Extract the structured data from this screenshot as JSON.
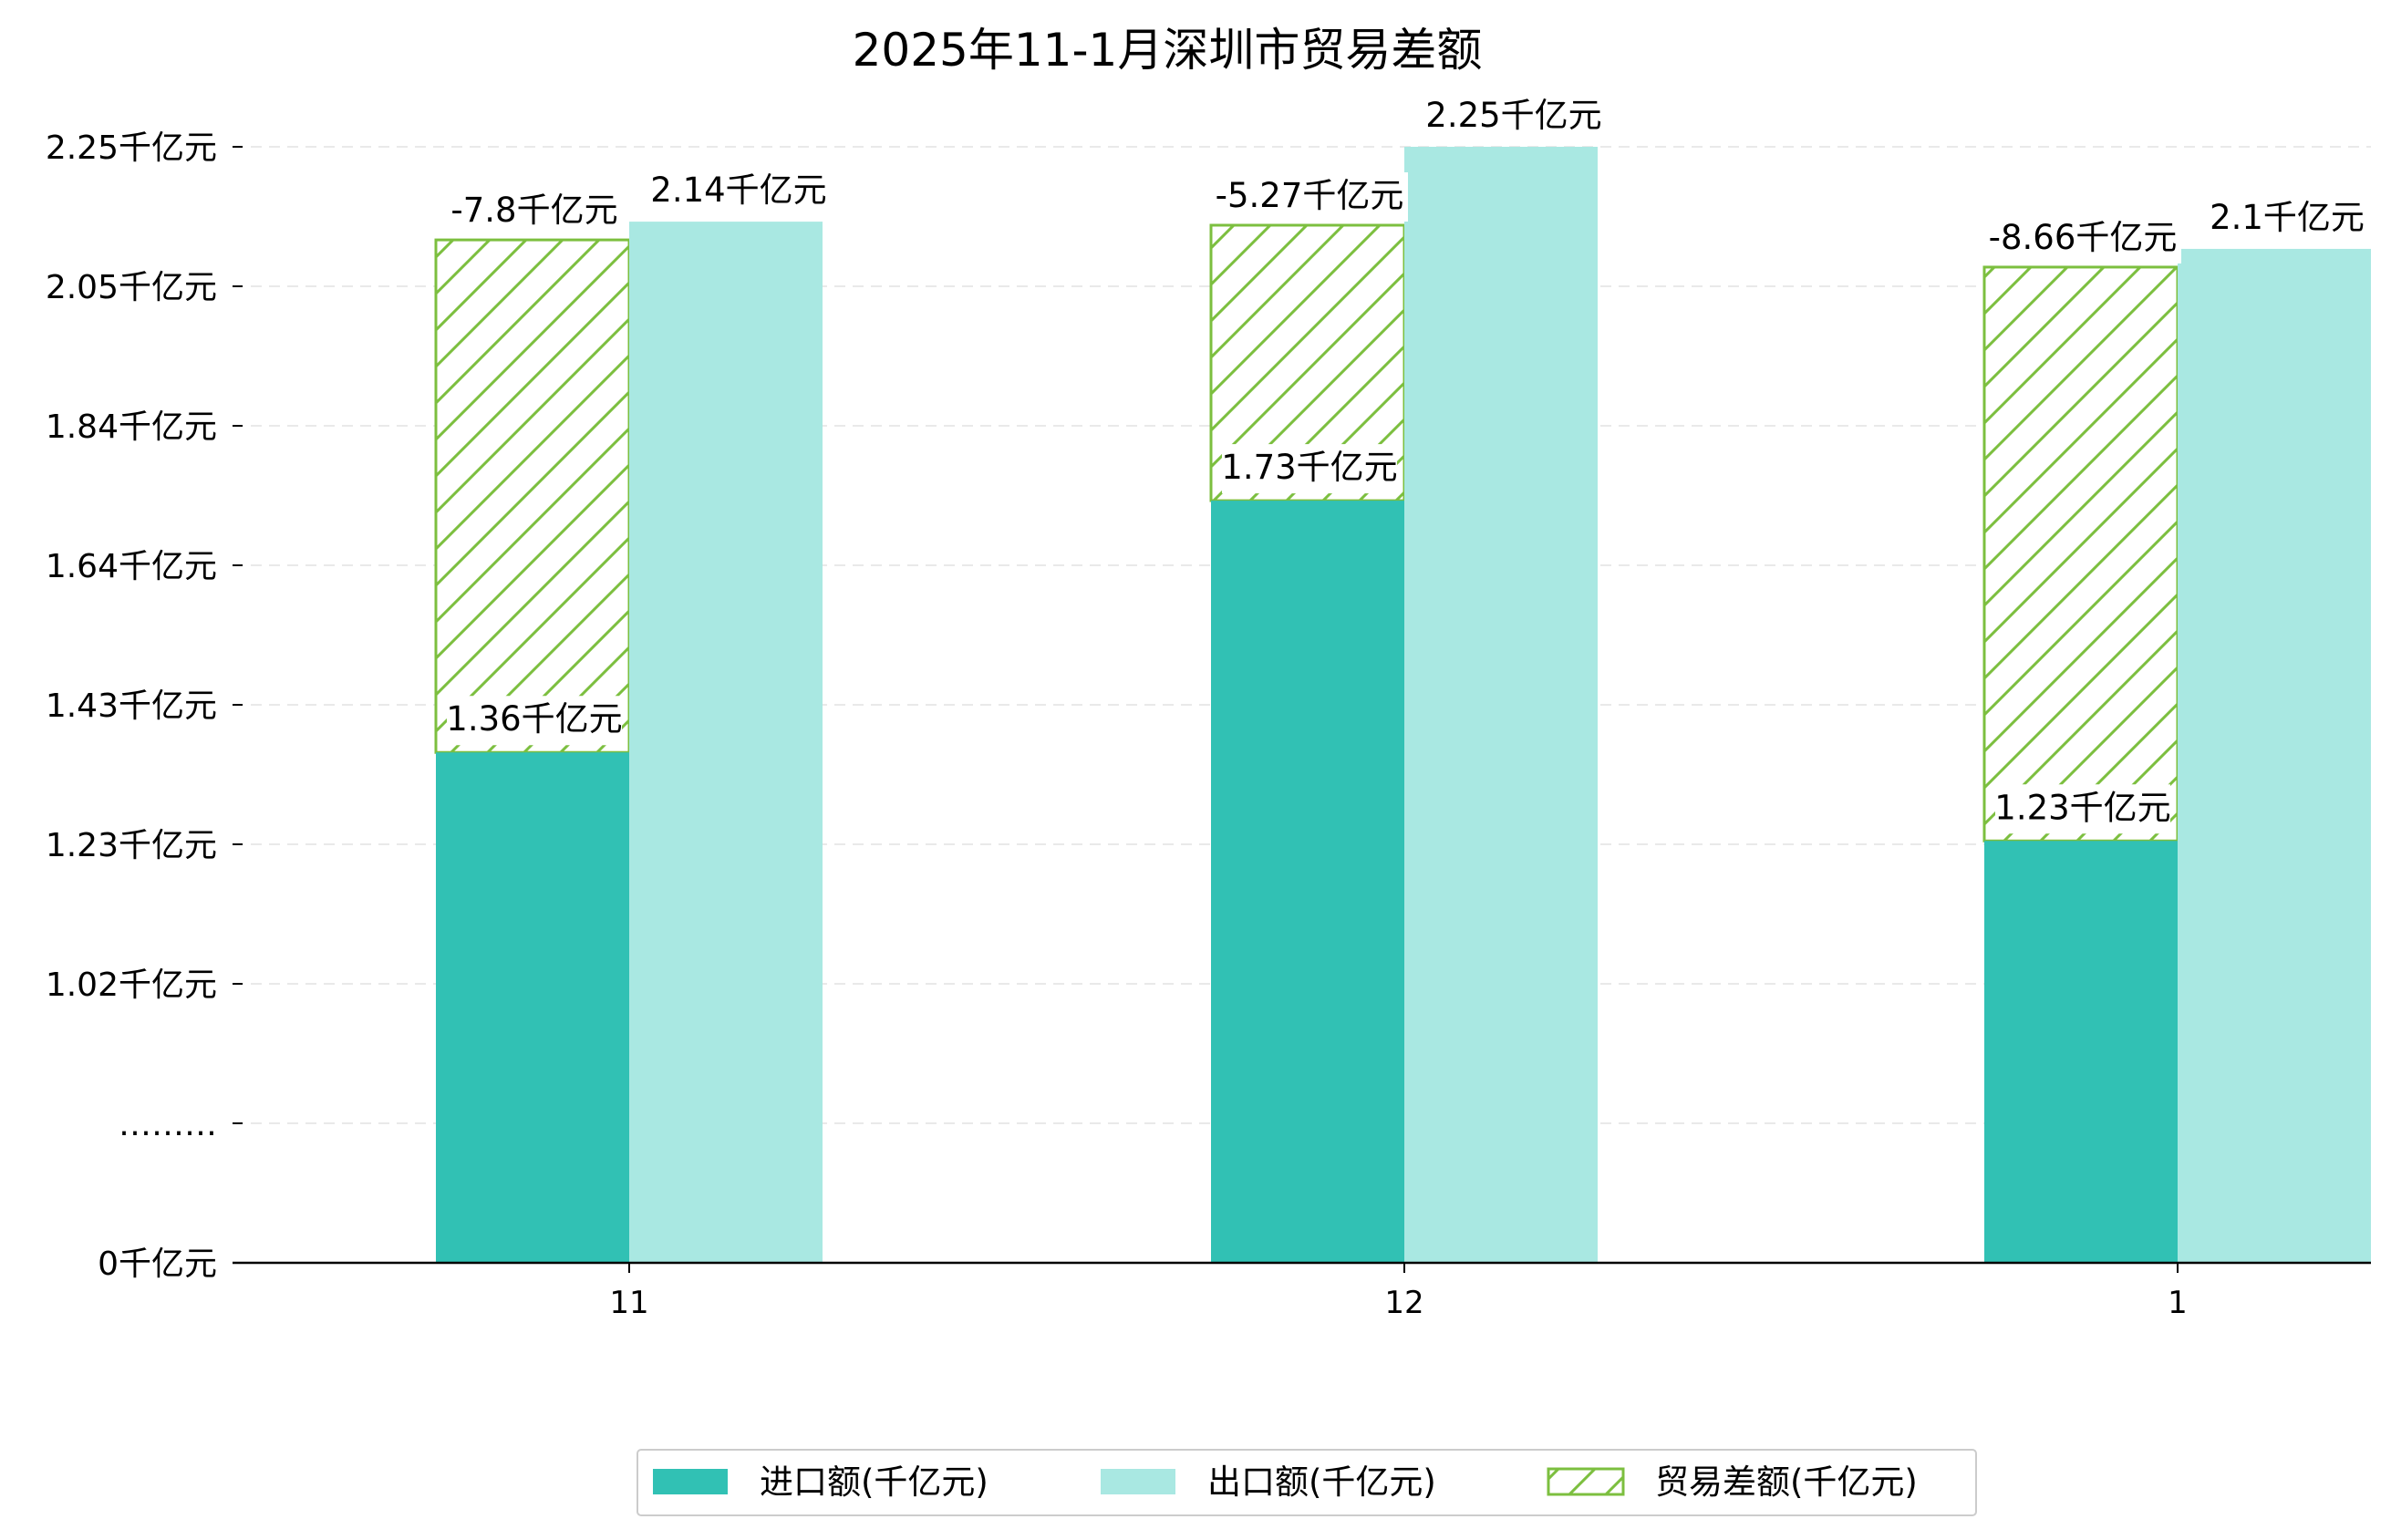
{
  "chart_data": {
    "type": "bar",
    "title": "2025年11-1月深圳市贸易差额",
    "categories": [
      "11",
      "12",
      "1"
    ],
    "y_tick_labels": [
      "0千亿元",
      "………",
      "1.02千亿元",
      "1.23千亿元",
      "1.43千亿元",
      "1.64千亿元",
      "1.84千亿元",
      "2.05千亿元",
      "2.25千亿元"
    ],
    "series": [
      {
        "name": "进口额(千亿元)",
        "values": [
          1.36,
          1.73,
          1.23
        ],
        "labels": [
          "1.36千亿元",
          "1.73千亿元",
          "1.23千亿元"
        ],
        "color": "#31c1b4"
      },
      {
        "name": "出口额(千亿元)",
        "values": [
          2.14,
          2.25,
          2.1
        ],
        "labels": [
          "2.14千亿元",
          "2.25千亿元",
          "2.1千亿元"
        ],
        "color": "#a9e8e2"
      },
      {
        "name": "贸易差额(千亿元)",
        "values": [
          -7.8,
          -5.27,
          -8.66
        ],
        "labels": [
          "-7.8千亿元",
          "-5.27千亿元",
          "-8.66千亿元"
        ],
        "color": "#7cbf3f",
        "style": "hatched, stacked on top of 进口额"
      }
    ],
    "legend_position": "bottom-center",
    "grid": "horizontal dashed"
  }
}
